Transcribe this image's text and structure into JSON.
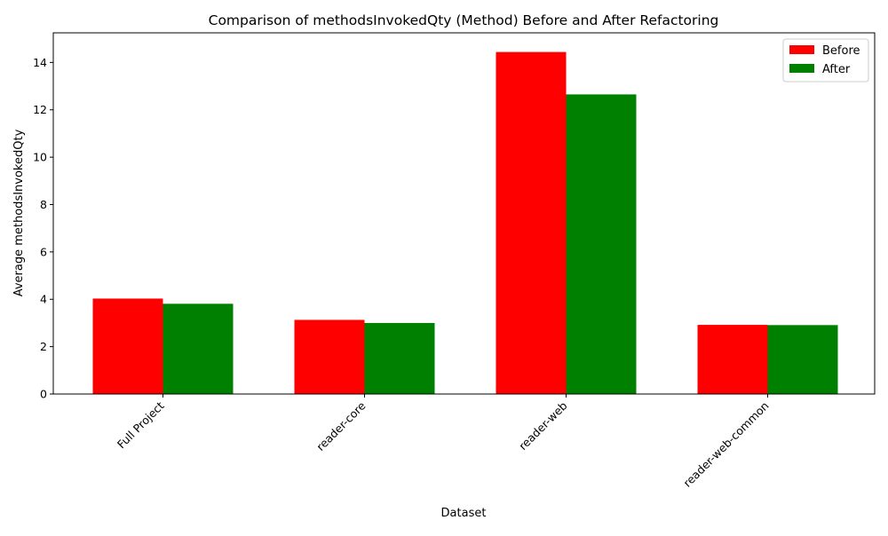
{
  "chart_data": {
    "type": "bar",
    "title": "Comparison of methodsInvokedQty (Method) Before and After Refactoring",
    "xlabel": "Dataset",
    "ylabel": "Average methodsInvokedQty",
    "categories": [
      "Full Project",
      "reader-core",
      "reader-web",
      "reader-web-common"
    ],
    "series": [
      {
        "name": "Before",
        "color": "#ff0000",
        "values": [
          4.03,
          3.13,
          14.44,
          2.92
        ]
      },
      {
        "name": "After",
        "color": "#008000",
        "values": [
          3.81,
          3.0,
          12.65,
          2.91
        ]
      }
    ],
    "ylim": [
      0,
      15.25
    ],
    "yticks": [
      0,
      2,
      4,
      6,
      8,
      10,
      12,
      14
    ],
    "grid": false,
    "legend_position": "top-right"
  }
}
